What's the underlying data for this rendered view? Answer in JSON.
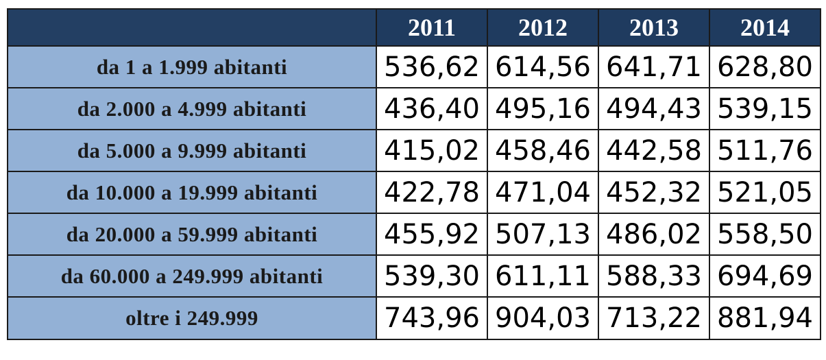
{
  "chart_data": {
    "type": "table",
    "columns": [
      "2011",
      "2012",
      "2013",
      "2014"
    ],
    "rows": [
      {
        "label": "da 1 a 1.999 abitanti",
        "values": [
          "536,62",
          "614,56",
          "641,71",
          "628,80"
        ]
      },
      {
        "label": "da 2.000 a 4.999 abitanti",
        "values": [
          "436,40",
          "495,16",
          "494,43",
          "539,15"
        ]
      },
      {
        "label": "da 5.000 a 9.999 abitanti",
        "values": [
          "415,02",
          "458,46",
          "442,58",
          "511,76"
        ]
      },
      {
        "label": "da 10.000 a 19.999 abitanti",
        "values": [
          "422,78",
          "471,04",
          "452,32",
          "521,05"
        ]
      },
      {
        "label": "da 20.000 a 59.999 abitanti",
        "values": [
          "455,92",
          "507,13",
          "486,02",
          "558,50"
        ]
      },
      {
        "label": "da 60.000 a 249.999 abitanti",
        "values": [
          "539,30",
          "611,11",
          "588,33",
          "694,69"
        ]
      },
      {
        "label": "oltre i 249.999",
        "values": [
          "743,96",
          "904,03",
          "713,22",
          "881,94"
        ]
      }
    ]
  },
  "colors": {
    "header_bg": "#1f3b5f",
    "header_text": "#ffffff",
    "row_label_bg": "#93b1d6",
    "cell_bg": "#ffffff",
    "border": "#1a1a1a"
  }
}
